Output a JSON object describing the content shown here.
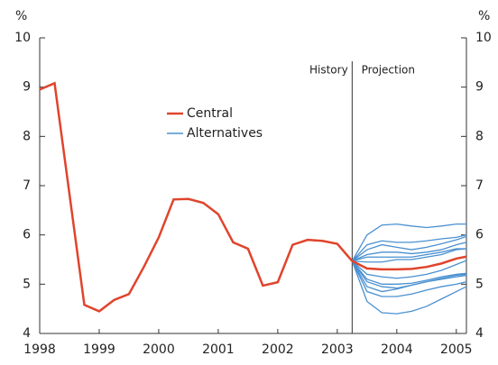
{
  "chart_data": {
    "type": "line",
    "y_unit_left": "%",
    "y_unit_right": "%",
    "history_label": "History",
    "projection_label": "Projection",
    "projection_start": 2003.25,
    "xlim": [
      1998,
      2005.17
    ],
    "xticks": [
      1998,
      1999,
      2000,
      2001,
      2002,
      2003,
      2004,
      2005
    ],
    "ylim": [
      4,
      10
    ],
    "yticks": [
      4,
      5,
      6,
      7,
      8,
      9,
      10
    ],
    "y2lim": [
      4,
      10
    ],
    "y2ticks": [
      4,
      5,
      6,
      7,
      8,
      9,
      10
    ],
    "series": [
      {
        "name": "Central",
        "color": "#e0442c",
        "x": [
          1998,
          1998.25,
          1998.75,
          1999,
          1999.25,
          1999.5,
          1999.75,
          2000,
          2000.25,
          2000.5,
          2000.75,
          2001,
          2001.25,
          2001.5,
          2001.75,
          2002,
          2002.25,
          2002.5,
          2002.75,
          2003,
          2003.25,
          2003.5,
          2003.75,
          2004,
          2004.25,
          2004.5,
          2004.75,
          2005,
          2005.17
        ],
        "values": [
          8.95,
          9.08,
          4.58,
          4.45,
          4.68,
          4.8,
          5.35,
          5.95,
          6.72,
          6.73,
          6.65,
          6.42,
          5.85,
          5.72,
          4.97,
          5.04,
          5.8,
          5.9,
          5.88,
          5.82,
          5.47,
          5.32,
          5.3,
          5.3,
          5.31,
          5.35,
          5.42,
          5.52,
          5.56
        ]
      },
      {
        "name": "Alternatives",
        "color": "#4a90d0",
        "x": [
          2003.25,
          2003.5,
          2003.75,
          2004,
          2004.25,
          2004.5,
          2004.75,
          2005,
          2005.17
        ],
        "values": [
          [
            5.47,
            6.0,
            6.2,
            6.22,
            6.18,
            6.15,
            6.18,
            6.22,
            6.22
          ],
          [
            5.47,
            5.8,
            5.88,
            5.85,
            5.85,
            5.88,
            5.92,
            5.95,
            6.0
          ],
          [
            5.47,
            5.7,
            5.8,
            5.75,
            5.7,
            5.75,
            5.82,
            5.9,
            5.97
          ],
          [
            5.47,
            5.6,
            5.65,
            5.65,
            5.62,
            5.65,
            5.7,
            5.8,
            5.85
          ],
          [
            5.47,
            5.55,
            5.55,
            5.55,
            5.55,
            5.6,
            5.65,
            5.72,
            5.72
          ],
          [
            5.47,
            5.45,
            5.45,
            5.5,
            5.5,
            5.55,
            5.6,
            5.7,
            5.72
          ],
          [
            5.47,
            5.2,
            5.15,
            5.12,
            5.15,
            5.2,
            5.28,
            5.4,
            5.48
          ],
          [
            5.47,
            5.1,
            5.0,
            5.0,
            5.02,
            5.08,
            5.15,
            5.2,
            5.22
          ],
          [
            5.47,
            5.05,
            4.95,
            4.92,
            4.98,
            5.05,
            5.12,
            5.18,
            5.2
          ],
          [
            5.47,
            4.95,
            4.85,
            4.9,
            4.98,
            5.05,
            5.1,
            5.15,
            5.18
          ],
          [
            5.47,
            4.85,
            4.75,
            4.75,
            4.8,
            4.88,
            4.95,
            5.0,
            5.05
          ],
          [
            5.47,
            4.65,
            4.42,
            4.4,
            4.45,
            4.55,
            4.7,
            4.85,
            4.95
          ]
        ]
      }
    ]
  }
}
